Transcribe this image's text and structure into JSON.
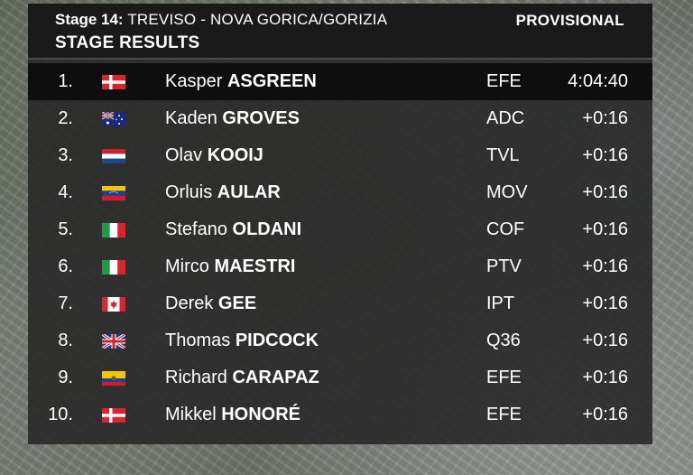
{
  "header": {
    "stage_label": "Stage 14:",
    "route": "TREVISO - NOVA GORICA/GORIZIA",
    "title": "STAGE RESULTS",
    "status": "PROVISIONAL"
  },
  "results": [
    {
      "pos": "1.",
      "first": "Kasper",
      "last": "ASGREEN",
      "team": "EFE",
      "time": "4:04:40",
      "flag": "denmark-flag-icon"
    },
    {
      "pos": "2.",
      "first": "Kaden",
      "last": "GROVES",
      "team": "ADC",
      "time": "+0:16",
      "flag": "australia-flag-icon"
    },
    {
      "pos": "3.",
      "first": "Olav",
      "last": "KOOIJ",
      "team": "TVL",
      "time": "+0:16",
      "flag": "netherlands-flag-icon"
    },
    {
      "pos": "4.",
      "first": "Orluis",
      "last": "AULAR",
      "team": "MOV",
      "time": "+0:16",
      "flag": "venezuela-flag-icon"
    },
    {
      "pos": "5.",
      "first": "Stefano",
      "last": "OLDANI",
      "team": "COF",
      "time": "+0:16",
      "flag": "italy-flag-icon"
    },
    {
      "pos": "6.",
      "first": "Mirco",
      "last": "MAESTRI",
      "team": "PTV",
      "time": "+0:16",
      "flag": "italy-flag-icon"
    },
    {
      "pos": "7.",
      "first": "Derek",
      "last": "GEE",
      "team": "IPT",
      "time": "+0:16",
      "flag": "canada-flag-icon"
    },
    {
      "pos": "8.",
      "first": "Thomas",
      "last": "PIDCOCK",
      "team": "Q36",
      "time": "+0:16",
      "flag": "uk-flag-icon"
    },
    {
      "pos": "9.",
      "first": "Richard",
      "last": "CARAPAZ",
      "team": "EFE",
      "time": "+0:16",
      "flag": "ecuador-flag-icon"
    },
    {
      "pos": "10.",
      "first": "Mikkel",
      "last": "HONORÉ",
      "team": "EFE",
      "time": "+0:16",
      "flag": "denmark-flag-icon"
    }
  ]
}
